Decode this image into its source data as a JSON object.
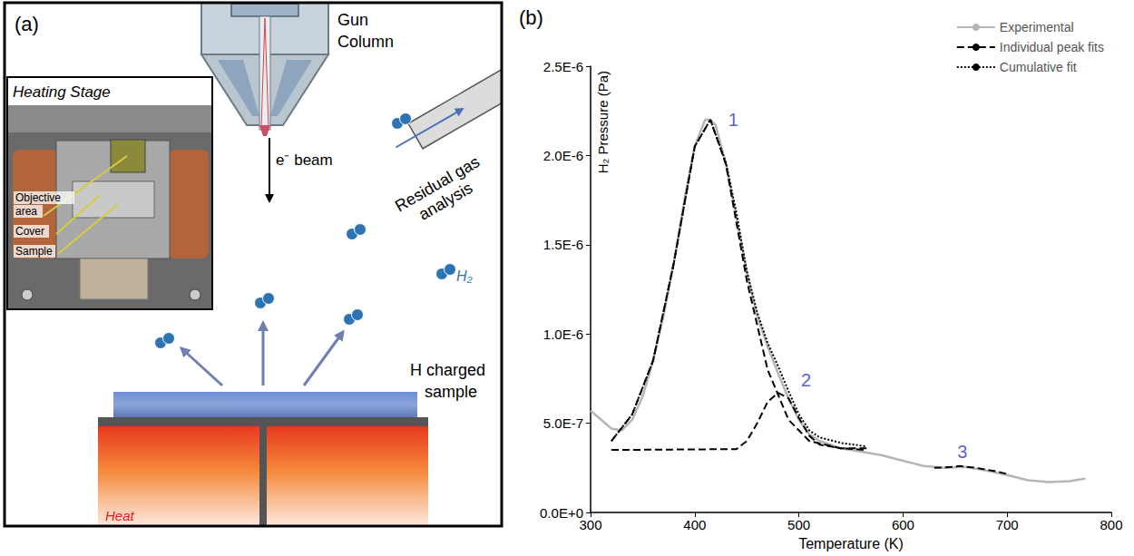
{
  "diagram": {
    "panel": "(a)",
    "gun": "Gun Column",
    "beam": "e⁻ beam",
    "rga": "Residual gas analysis",
    "molecule": "H₂",
    "sample": "H charged sample",
    "heat": "Heat",
    "inset": {
      "title": "Heating Stage",
      "labels": [
        "Objective area",
        "Cover",
        "Sample"
      ]
    }
  },
  "chart_data": {
    "type": "line",
    "panel": "(b)",
    "x_label": "Temperature (K)",
    "y_label": "H₂ Pressure (Pa)",
    "xlim": [
      300,
      800
    ],
    "xticks": [
      300,
      400,
      500,
      600,
      700,
      800
    ],
    "ylim": [
      0,
      2.5e-06
    ],
    "yticks": [
      {
        "value": 0,
        "label": "0.0E+0"
      },
      {
        "value": 5e-07,
        "label": "5.0E-7"
      },
      {
        "value": 1e-06,
        "label": "1.0E-6"
      },
      {
        "value": 1.5e-06,
        "label": "1.5E-6"
      },
      {
        "value": 2e-06,
        "label": "2.0E-6"
      },
      {
        "value": 2.5e-06,
        "label": "2.5E-6"
      }
    ],
    "grid": false,
    "legend": "top-right",
    "series": [
      {
        "name": "Experimental",
        "color": "#b5b5b5",
        "line_style": "solid",
        "x": [
          300,
          320,
          330,
          340,
          350,
          360,
          370,
          380,
          390,
          400,
          410,
          415,
          420,
          430,
          440,
          450,
          460,
          470,
          480,
          490,
          500,
          510,
          520,
          530,
          540,
          560,
          580,
          600,
          620,
          640,
          660,
          680,
          700,
          720,
          740,
          760,
          775
        ],
        "values": [
          5.7e-07,
          4.7e-07,
          4.6e-07,
          5.2e-07,
          6.5e-07,
          8.5e-07,
          1.1e-06,
          1.4e-06,
          1.75e-06,
          2.05e-06,
          2.2e-06,
          2.2e-06,
          2.17e-06,
          1.95e-06,
          1.65e-06,
          1.35e-06,
          1.1e-06,
          9.3e-07,
          7.8e-07,
          6.4e-07,
          5.2e-07,
          4.4e-07,
          4e-07,
          3.8e-07,
          3.6e-07,
          3.4e-07,
          3.2e-07,
          2.9e-07,
          2.6e-07,
          2.5e-07,
          2.55e-07,
          2.35e-07,
          2.1e-07,
          1.8e-07,
          1.7e-07,
          1.75e-07,
          1.9e-07
        ]
      },
      {
        "name": "Individual peak fits",
        "color": "#000000",
        "line_style": "dashed",
        "x": [
          320,
          340,
          360,
          380,
          400,
          415,
          430,
          450,
          470,
          490,
          510,
          540,
          565
        ],
        "values": [
          4e-07,
          5.5e-07,
          8.5e-07,
          1.4e-06,
          2.05e-06,
          2.2e-06,
          1.95e-06,
          1.3e-06,
          8e-07,
          5.2e-07,
          4e-07,
          3.6e-07,
          3.5e-07
        ]
      },
      {
        "name": "Individual peak fits",
        "color": "#000000",
        "line_style": "dashed",
        "x": [
          320,
          440,
          450,
          460,
          470,
          480,
          490,
          500,
          510,
          520,
          540,
          565
        ],
        "values": [
          3.5e-07,
          3.55e-07,
          4e-07,
          5e-07,
          6.2e-07,
          6.7e-07,
          6.4e-07,
          5.3e-07,
          4.3e-07,
          3.8e-07,
          3.6e-07,
          3.6e-07
        ]
      },
      {
        "name": "Individual peak fits",
        "color": "#000000",
        "line_style": "dashed",
        "x": [
          630,
          640,
          655,
          670,
          690,
          700
        ],
        "values": [
          2.5e-07,
          2.52e-07,
          2.6e-07,
          2.5e-07,
          2.3e-07,
          2.15e-07
        ]
      },
      {
        "name": "Cumulative fit",
        "color": "#000000",
        "line_style": "dotted",
        "x": [
          320,
          340,
          360,
          380,
          400,
          415,
          430,
          440,
          450,
          460,
          470,
          480,
          490,
          500,
          510,
          520,
          540,
          565
        ],
        "values": [
          4e-07,
          5.5e-07,
          8.5e-07,
          1.4e-06,
          2.05e-06,
          2.2e-06,
          1.96e-06,
          1.68e-06,
          1.35e-06,
          1.12e-06,
          9.5e-07,
          8.2e-07,
          6.8e-07,
          5.5e-07,
          4.6e-07,
          4.2e-07,
          3.9e-07,
          3.7e-07
        ]
      }
    ],
    "annotations": [
      {
        "text": "1",
        "x": 437,
        "y": 2.2e-06,
        "color": "#2b35c9"
      },
      {
        "text": "2",
        "x": 507,
        "y": 7.4e-07,
        "color": "#2b35c9"
      },
      {
        "text": "3",
        "x": 657,
        "y": 3.4e-07,
        "color": "#2b35c9"
      }
    ]
  }
}
